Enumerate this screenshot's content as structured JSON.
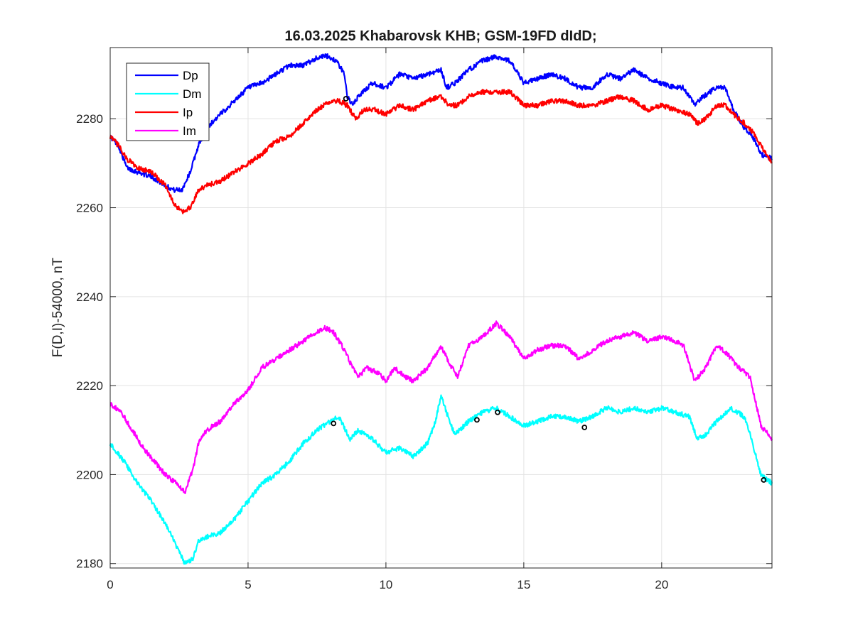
{
  "chart_data": {
    "type": "line",
    "title": "16.03.2025  Khabarovsk KHB; GSM-19FD dIdD;",
    "xlabel": "",
    "ylabel": "F(D,I)-54000, nT",
    "xlim": [
      0,
      24
    ],
    "ylim": [
      2179,
      2296
    ],
    "xticks": [
      0,
      5,
      10,
      15,
      20
    ],
    "yticks": [
      2180,
      2200,
      2220,
      2240,
      2260,
      2280
    ],
    "grid": true,
    "legend_position": "top-left",
    "series": [
      {
        "name": "Dp",
        "color": "#0000ff",
        "x": [
          0,
          0.3,
          0.6,
          1.0,
          1.5,
          2.0,
          2.3,
          2.6,
          2.9,
          3.2,
          3.5,
          4.0,
          4.5,
          5.0,
          5.5,
          6.0,
          6.5,
          7.0,
          7.3,
          7.6,
          7.9,
          8.2,
          8.5,
          8.6,
          8.8,
          9.0,
          9.5,
          10.0,
          10.5,
          11.0,
          11.5,
          12.0,
          12.2,
          12.5,
          13.0,
          13.5,
          14.0,
          14.5,
          15.0,
          15.5,
          16.0,
          16.5,
          17.0,
          17.5,
          18.0,
          18.5,
          19.0,
          19.5,
          20.0,
          20.5,
          20.8,
          21.2,
          21.5,
          22.0,
          22.3,
          22.6,
          23.0,
          23.3,
          23.6,
          24.0
        ],
        "y": [
          2276,
          2274,
          2269,
          2268,
          2267,
          2265,
          2264,
          2264,
          2268,
          2274,
          2278,
          2281,
          2284,
          2287,
          2288,
          2290,
          2292,
          2292,
          2293,
          2294,
          2294,
          2293,
          2290,
          2285,
          2283,
          2285,
          2288,
          2287,
          2290,
          2289,
          2290,
          2291,
          2287,
          2288,
          2291,
          2293,
          2294,
          2293,
          2288,
          2289,
          2290,
          2289,
          2287,
          2287,
          2290,
          2289,
          2291,
          2289,
          2288,
          2287,
          2287,
          2283,
          2285,
          2287,
          2287,
          2282,
          2278,
          2276,
          2272,
          2271
        ]
      },
      {
        "name": "Dm",
        "color": "#00ffff",
        "x": [
          0,
          0.5,
          1.0,
          1.5,
          2.0,
          2.4,
          2.7,
          3.0,
          3.2,
          3.5,
          4.0,
          4.5,
          5.0,
          5.5,
          6.0,
          6.5,
          7.0,
          7.5,
          8.0,
          8.3,
          8.7,
          9.0,
          9.5,
          10.0,
          10.5,
          11.0,
          11.5,
          11.8,
          12.0,
          12.3,
          12.5,
          13.0,
          13.5,
          14.0,
          14.5,
          15.0,
          15.5,
          16.0,
          16.5,
          17.0,
          17.5,
          18.0,
          18.5,
          19.0,
          19.5,
          20.0,
          20.5,
          21.0,
          21.3,
          21.6,
          22.0,
          22.5,
          23.0,
          23.3,
          23.6,
          24.0
        ],
        "y": [
          2207,
          2203,
          2198,
          2194,
          2189,
          2184,
          2180,
          2181,
          2185,
          2186,
          2187,
          2190,
          2194,
          2198,
          2200,
          2203,
          2207,
          2210,
          2212,
          2213,
          2208,
          2210,
          2208,
          2205,
          2206,
          2204,
          2207,
          2212,
          2218,
          2212,
          2209,
          2212,
          2214,
          2215,
          2213,
          2211,
          2212,
          2213,
          2213,
          2212,
          2213,
          2215,
          2214,
          2215,
          2214,
          2215,
          2214,
          2213,
          2208,
          2209,
          2212,
          2215,
          2213,
          2207,
          2200,
          2198
        ]
      },
      {
        "name": "Ip",
        "color": "#ff0000",
        "x": [
          0,
          0.3,
          0.6,
          1.0,
          1.5,
          2.0,
          2.3,
          2.6,
          2.9,
          3.2,
          3.5,
          4.0,
          4.5,
          5.0,
          5.5,
          6.0,
          6.5,
          7.0,
          7.5,
          8.0,
          8.3,
          8.6,
          8.9,
          9.2,
          9.6,
          10.0,
          10.5,
          11.0,
          11.5,
          12.0,
          12.3,
          12.6,
          13.0,
          13.5,
          14.0,
          14.5,
          15.0,
          15.5,
          16.0,
          16.5,
          17.0,
          17.5,
          18.0,
          18.5,
          19.0,
          19.5,
          20.0,
          20.5,
          21.0,
          21.3,
          21.6,
          22.0,
          22.3,
          22.6,
          23.0,
          23.3,
          23.6,
          24.0
        ],
        "y": [
          2276,
          2274,
          2271,
          2269,
          2268,
          2265,
          2261,
          2259,
          2260,
          2264,
          2265,
          2266,
          2268,
          2270,
          2272,
          2275,
          2276,
          2279,
          2282,
          2284,
          2284,
          2283,
          2280,
          2282,
          2282,
          2281,
          2283,
          2282,
          2284,
          2285,
          2283,
          2283,
          2285,
          2286,
          2286,
          2286,
          2283,
          2283,
          2284,
          2284,
          2283,
          2283,
          2284,
          2285,
          2284,
          2282,
          2283,
          2282,
          2281,
          2279,
          2280,
          2283,
          2283,
          2281,
          2279,
          2277,
          2274,
          2270
        ]
      },
      {
        "name": "Im",
        "color": "#ff00ff",
        "x": [
          0,
          0.4,
          0.8,
          1.2,
          1.6,
          2.0,
          2.4,
          2.7,
          3.0,
          3.2,
          3.5,
          4.0,
          4.5,
          5.0,
          5.5,
          6.0,
          6.5,
          7.0,
          7.5,
          7.8,
          8.1,
          8.4,
          8.8,
          9.0,
          9.3,
          9.7,
          10.0,
          10.3,
          10.7,
          11.0,
          11.5,
          12.0,
          12.3,
          12.6,
          13.0,
          13.5,
          14.0,
          14.5,
          15.0,
          15.5,
          16.0,
          16.5,
          17.0,
          17.5,
          18.0,
          18.5,
          19.0,
          19.5,
          20.0,
          20.5,
          20.8,
          21.2,
          21.6,
          22.0,
          22.4,
          22.8,
          23.2,
          23.6,
          24.0
        ],
        "y": [
          2216,
          2214,
          2210,
          2206,
          2203,
          2200,
          2198,
          2196,
          2201,
          2207,
          2210,
          2212,
          2216,
          2219,
          2224,
          2226,
          2228,
          2230,
          2232,
          2233,
          2232,
          2229,
          2224,
          2222,
          2224,
          2223,
          2221,
          2224,
          2222,
          2221,
          2224,
          2229,
          2225,
          2222,
          2229,
          2231,
          2234,
          2231,
          2226,
          2228,
          2229,
          2229,
          2226,
          2228,
          2230,
          2231,
          2232,
          2230,
          2231,
          2230,
          2229,
          2221,
          2224,
          2229,
          2227,
          2224,
          2222,
          2211,
          2208
        ]
      }
    ],
    "markers": {
      "color": "#000000",
      "points": [
        {
          "x": 8.55,
          "y": 2284.5
        },
        {
          "x": 8.1,
          "y": 2211.5
        },
        {
          "x": 13.3,
          "y": 2212.3
        },
        {
          "x": 14.05,
          "y": 2214.0
        },
        {
          "x": 17.2,
          "y": 2210.6
        },
        {
          "x": 23.7,
          "y": 2198.8
        }
      ]
    }
  }
}
